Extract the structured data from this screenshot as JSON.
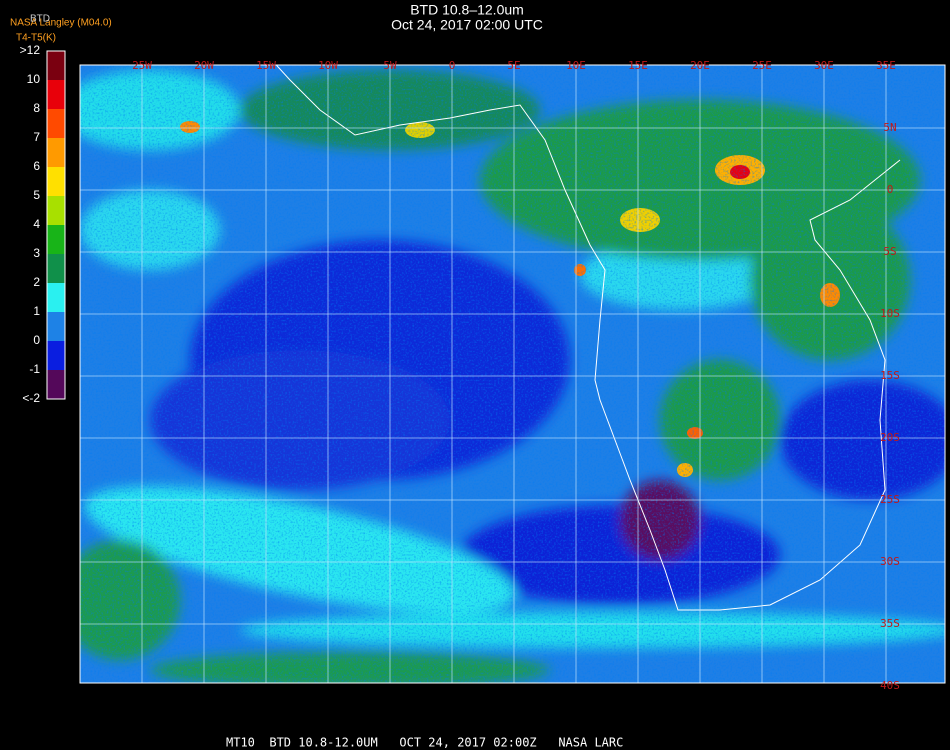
{
  "header": {
    "title": "BTD 10.8–12.0um",
    "subtitle": "Oct 24, 2017 02:00 UTC",
    "source": "NASA Langley (M04.0)",
    "product": "BTD",
    "units": "T4-T5(K)"
  },
  "colorbar": {
    "labels": [
      ">12",
      "10",
      "8",
      "7",
      "6",
      "5",
      "4",
      "3",
      "2",
      "1",
      "0",
      "-1",
      "<-2"
    ],
    "colors": [
      "#7a0010",
      "#e8000a",
      "#ff4a00",
      "#ff9a00",
      "#ffe000",
      "#a8e000",
      "#18b418",
      "#10904a",
      "#2af0f0",
      "#1e82e6",
      "#0a1ee0",
      "#54085a"
    ]
  },
  "map": {
    "lon_labels": [
      "25W",
      "20W",
      "15W",
      "10W",
      "5W",
      "0",
      "5E",
      "10E",
      "15E",
      "20E",
      "25E",
      "30E",
      "35E"
    ],
    "lat_labels": [
      "5N",
      "0",
      "5S",
      "10S",
      "15S",
      "20S",
      "25S",
      "30S",
      "35S",
      "40S"
    ]
  },
  "footer": "MT10  BTD 10.8-12.0UM   OCT 24, 2017 02:00Z   NASA LARC"
}
